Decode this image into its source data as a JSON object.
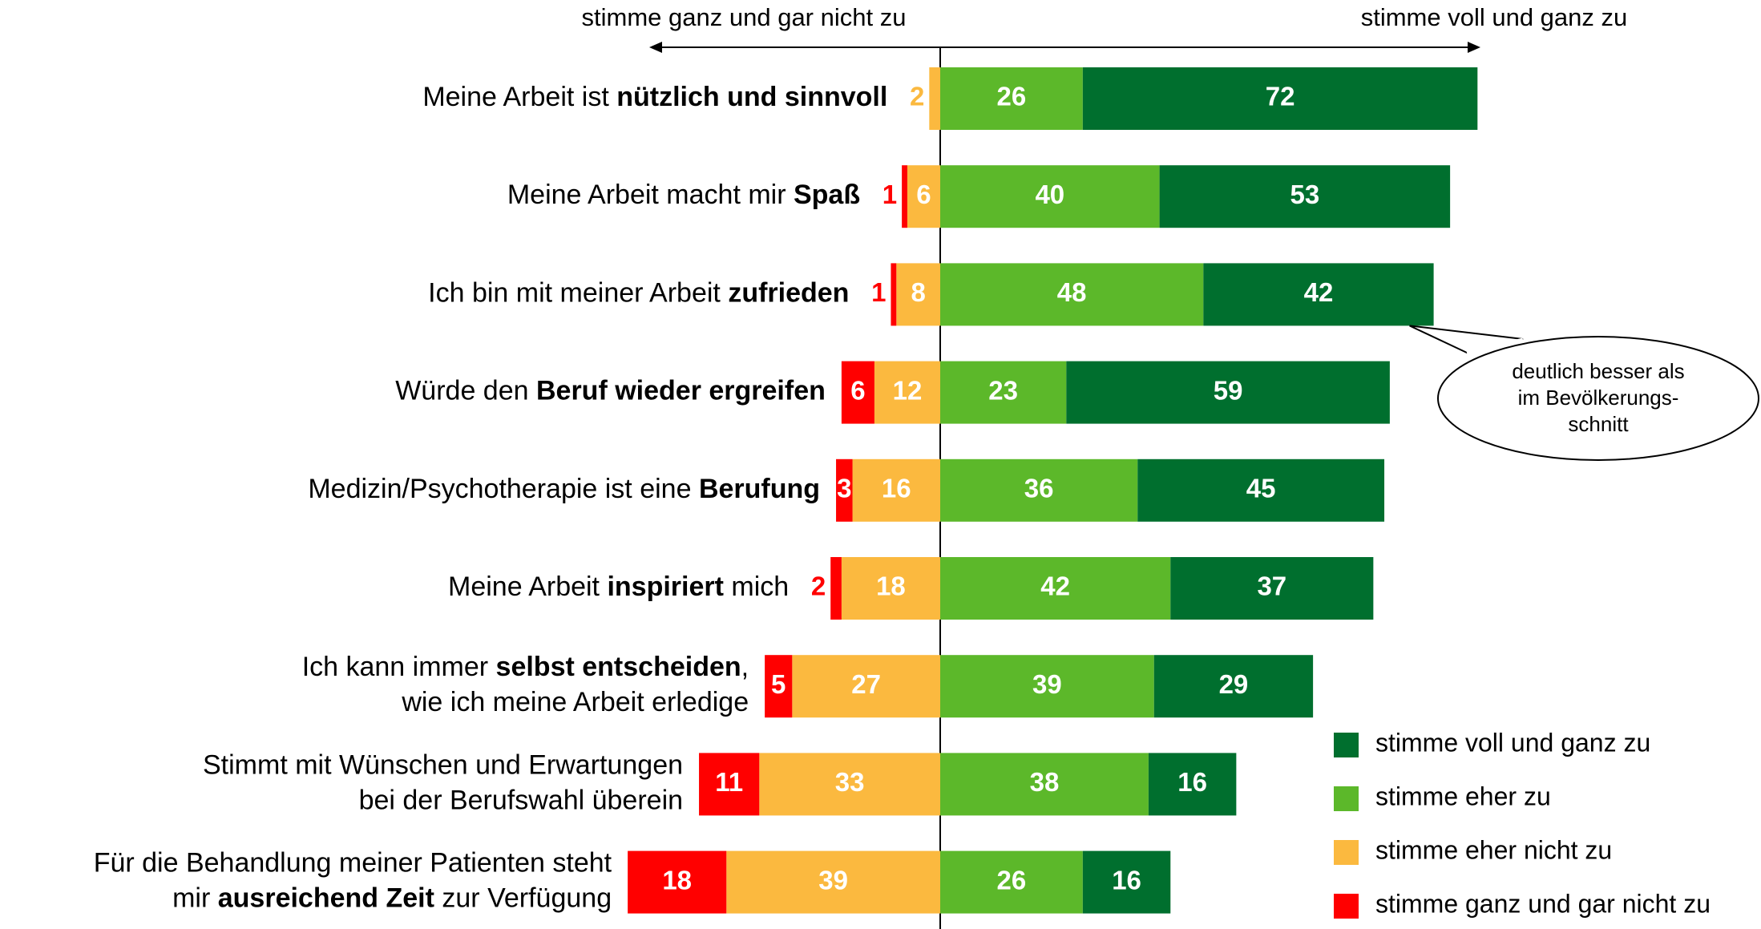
{
  "chart_data": {
    "type": "diverging_bar",
    "left_label": "stimme ganz und gar nicht zu",
    "right_label": "stimme voll und ganz zu",
    "categories": [
      [
        [
          {
            "text": "Meine Arbeit ist ",
            "bold": false
          },
          {
            "text": "nützlich und sinnvoll",
            "bold": true
          }
        ]
      ],
      [
        [
          {
            "text": "Meine Arbeit macht mir ",
            "bold": false
          },
          {
            "text": "Spaß",
            "bold": true
          }
        ]
      ],
      [
        [
          {
            "text": "Ich bin mit meiner Arbeit ",
            "bold": false
          },
          {
            "text": "zufrieden",
            "bold": true
          }
        ]
      ],
      [
        [
          {
            "text": "Würde den ",
            "bold": false
          },
          {
            "text": "Beruf wieder ergreifen",
            "bold": true
          }
        ]
      ],
      [
        [
          {
            "text": "Medizin/Psychotherapie ist eine ",
            "bold": false
          },
          {
            "text": "Berufung",
            "bold": true
          }
        ]
      ],
      [
        [
          {
            "text": "Meine Arbeit ",
            "bold": false
          },
          {
            "text": "inspiriert",
            "bold": true
          },
          {
            "text": " mich",
            "bold": false
          }
        ]
      ],
      [
        [
          {
            "text": "Ich kann immer ",
            "bold": false
          },
          {
            "text": "selbst entscheiden",
            "bold": true
          },
          {
            "text": ",",
            "bold": false
          }
        ],
        [
          {
            "text": "wie ich meine Arbeit erledige",
            "bold": false
          }
        ]
      ],
      [
        [
          {
            "text": "Stimmt mit Wünschen und Erwartungen",
            "bold": false
          }
        ],
        [
          {
            "text": "bei der Berufswahl überein",
            "bold": false
          }
        ]
      ],
      [
        [
          {
            "text": "Für die Behandlung meiner Patienten steht",
            "bold": false
          }
        ],
        [
          {
            "text": "mir ",
            "bold": false
          },
          {
            "text": "ausreichend Zeit",
            "bold": true
          },
          {
            "text": " zur Verfügung",
            "bold": false
          }
        ]
      ]
    ],
    "series": [
      {
        "name": "stimme ganz und gar nicht zu",
        "color": "#ff0000",
        "values": [
          null,
          1,
          1,
          6,
          3,
          2,
          5,
          11,
          18
        ]
      },
      {
        "name": "stimme eher nicht zu",
        "color": "#fbb93f",
        "values": [
          2,
          6,
          8,
          12,
          16,
          18,
          27,
          33,
          39
        ]
      },
      {
        "name": "stimme eher zu",
        "color": "#5cb82a",
        "values": [
          26,
          40,
          48,
          23,
          36,
          42,
          39,
          38,
          26
        ]
      },
      {
        "name": "stimme voll und ganz zu",
        "color": "#006f2e",
        "values": [
          72,
          53,
          42,
          59,
          45,
          37,
          29,
          16,
          16
        ]
      }
    ],
    "annotation": {
      "lines": [
        "deutlich besser als",
        "im Bevölkerungs-",
        "schnitt"
      ],
      "category": 2
    }
  }
}
